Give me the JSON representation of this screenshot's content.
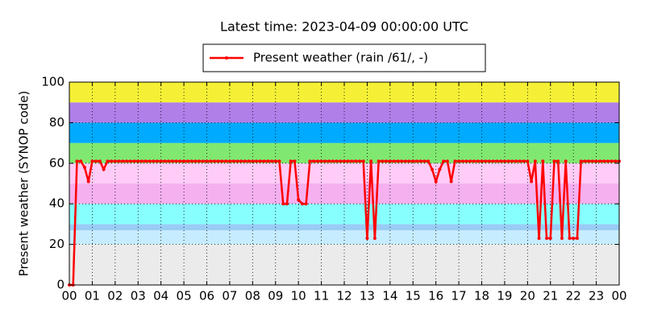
{
  "chart_data": {
    "type": "line",
    "title": "Latest time: 2023-04-09 00:00:00 UTC",
    "y_label": "Present weather (SYNOP code)",
    "grid": true,
    "legend": "top",
    "xlim": [
      0,
      1440
    ],
    "xticks": [
      {
        "value": 0,
        "label": "00"
      },
      {
        "value": 60,
        "label": "01"
      },
      {
        "value": 120,
        "label": "02"
      },
      {
        "value": 180,
        "label": "03"
      },
      {
        "value": 240,
        "label": "04"
      },
      {
        "value": 300,
        "label": "05"
      },
      {
        "value": 360,
        "label": "06"
      },
      {
        "value": 420,
        "label": "07"
      },
      {
        "value": 480,
        "label": "08"
      },
      {
        "value": 540,
        "label": "09"
      },
      {
        "value": 600,
        "label": "10"
      },
      {
        "value": 660,
        "label": "11"
      },
      {
        "value": 720,
        "label": "12"
      },
      {
        "value": 780,
        "label": "13"
      },
      {
        "value": 840,
        "label": "14"
      },
      {
        "value": 900,
        "label": "15"
      },
      {
        "value": 960,
        "label": "16"
      },
      {
        "value": 1020,
        "label": "17"
      },
      {
        "value": 1080,
        "label": "18"
      },
      {
        "value": 1140,
        "label": "19"
      },
      {
        "value": 1200,
        "label": "20"
      },
      {
        "value": 1260,
        "label": "21"
      },
      {
        "value": 1320,
        "label": "22"
      },
      {
        "value": 1380,
        "label": "23"
      },
      {
        "value": 1440,
        "label": "00"
      }
    ],
    "ylim": [
      0,
      100
    ],
    "yticks": [
      0,
      20,
      40,
      60,
      80,
      100
    ],
    "bands": [
      {
        "from": 0,
        "to": 20,
        "color": "#ebebeb"
      },
      {
        "from": 20,
        "to": 27,
        "color": "#c6ecff"
      },
      {
        "from": 27,
        "to": 30,
        "color": "#99ccf5"
      },
      {
        "from": 30,
        "to": 40,
        "color": "#88ffff"
      },
      {
        "from": 40,
        "to": 50,
        "color": "#f5b0f0"
      },
      {
        "from": 50,
        "to": 60,
        "color": "#ffccf7"
      },
      {
        "from": 60,
        "to": 70,
        "color": "#80e870"
      },
      {
        "from": 70,
        "to": 80,
        "color": "#00aaff"
      },
      {
        "from": 80,
        "to": 90,
        "color": "#b07fe8"
      },
      {
        "from": 90,
        "to": 100,
        "color": "#f5f035"
      }
    ],
    "x": [
      0,
      10,
      20,
      30,
      40,
      50,
      60,
      70,
      80,
      90,
      100,
      110,
      120,
      130,
      140,
      150,
      160,
      170,
      180,
      190,
      200,
      210,
      220,
      230,
      240,
      250,
      260,
      270,
      280,
      290,
      300,
      310,
      320,
      330,
      340,
      350,
      360,
      370,
      380,
      390,
      400,
      410,
      420,
      430,
      440,
      450,
      460,
      470,
      480,
      490,
      500,
      510,
      520,
      530,
      540,
      550,
      560,
      570,
      580,
      590,
      600,
      610,
      620,
      630,
      640,
      650,
      660,
      670,
      680,
      690,
      700,
      710,
      720,
      730,
      740,
      750,
      760,
      770,
      780,
      790,
      800,
      810,
      820,
      830,
      840,
      850,
      860,
      870,
      880,
      890,
      900,
      910,
      920,
      930,
      940,
      950,
      960,
      970,
      980,
      990,
      1000,
      1010,
      1020,
      1030,
      1040,
      1050,
      1060,
      1070,
      1080,
      1090,
      1100,
      1110,
      1120,
      1130,
      1140,
      1150,
      1160,
      1170,
      1180,
      1190,
      1200,
      1210,
      1220,
      1230,
      1240,
      1250,
      1260,
      1270,
      1280,
      1290,
      1300,
      1310,
      1320,
      1330,
      1340,
      1350,
      1360,
      1370,
      1380,
      1390,
      1400,
      1410,
      1420,
      1430,
      1440
    ],
    "series": [
      {
        "name": "Present weather (rain /61/, -)",
        "color": "#ff0000",
        "values": [
          0,
          0,
          61,
          61,
          58,
          51,
          61,
          61,
          61,
          57,
          61,
          61,
          61,
          61,
          61,
          61,
          61,
          61,
          61,
          61,
          61,
          61,
          61,
          61,
          61,
          61,
          61,
          61,
          61,
          61,
          61,
          61,
          61,
          61,
          61,
          61,
          61,
          61,
          61,
          61,
          61,
          61,
          61,
          61,
          61,
          61,
          61,
          61,
          61,
          61,
          61,
          61,
          61,
          61,
          61,
          61,
          40,
          40,
          61,
          61,
          42,
          40,
          40,
          61,
          61,
          61,
          61,
          61,
          61,
          61,
          61,
          61,
          61,
          61,
          61,
          61,
          61,
          61,
          23,
          61,
          23,
          61,
          61,
          61,
          61,
          61,
          61,
          61,
          61,
          61,
          61,
          61,
          61,
          61,
          61,
          57,
          51,
          57,
          61,
          61,
          51,
          61,
          61,
          61,
          61,
          61,
          61,
          61,
          61,
          61,
          61,
          61,
          61,
          61,
          61,
          61,
          61,
          61,
          61,
          61,
          61,
          51,
          61,
          23,
          61,
          23,
          23,
          61,
          61,
          23,
          61,
          23,
          23,
          23,
          61,
          61,
          61,
          61,
          61,
          61,
          61,
          61,
          61,
          61,
          61
        ]
      }
    ]
  }
}
